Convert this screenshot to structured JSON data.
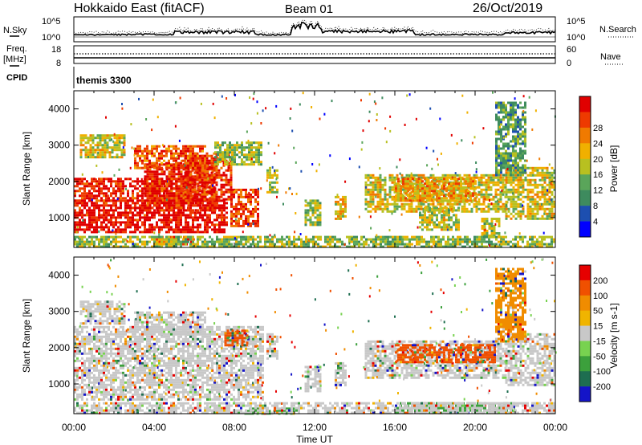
{
  "header": {
    "station": "Hokkaido East (fitACF)",
    "beam": "Beam 01",
    "date": "26/Oct/2019"
  },
  "sky_panel": {
    "left_label": "N.Sky",
    "right_label": "N.Search",
    "left_ticks": [
      "10^5",
      "10^0"
    ],
    "right_ticks": [
      "10^5",
      "10^0"
    ]
  },
  "freq_panel": {
    "left_label_1": "Freq.",
    "left_label_2": "[MHz]",
    "right_label": "Nave",
    "left_ticks": [
      "18",
      "8"
    ],
    "right_ticks": [
      "60",
      "0"
    ]
  },
  "cpid_panel": {
    "label": "CPID",
    "mode": "themis 3300"
  },
  "chart_data": [
    {
      "type": "heatmap",
      "title": "",
      "quantity": "Power",
      "unit": "dB",
      "ylabel": "Slant Range [km]",
      "xlabel": "",
      "x_ticks": [
        "00:00",
        "04:00",
        "08:00",
        "12:00",
        "16:00",
        "20:00",
        "00:00"
      ],
      "x_range_hours": [
        0,
        24
      ],
      "y_ticks": [
        1000,
        2000,
        3000,
        4000
      ],
      "ylim": [
        180,
        4500
      ],
      "colorbar": {
        "label": "Power [dB]",
        "ticks": [
          "4",
          "8",
          "12",
          "16",
          "20",
          "24",
          "28"
        ],
        "colors": [
          "#0000ff",
          "#1d4fb0",
          "#3e8b5e",
          "#5aa55a",
          "#b8c020",
          "#f0b000",
          "#f07a00",
          "#ee3a00",
          "#e00000"
        ]
      },
      "regions": [
        {
          "h0": 0.0,
          "h1": 7.6,
          "r0": 600,
          "r1": 1500,
          "level": 0.95
        },
        {
          "h0": 0.0,
          "h1": 6.0,
          "r0": 1500,
          "r1": 2100,
          "level": 0.92
        },
        {
          "h0": 3.5,
          "h1": 7.0,
          "r0": 1200,
          "r1": 2500,
          "level": 0.9
        },
        {
          "h0": 5.5,
          "h1": 7.8,
          "r0": 1500,
          "r1": 2800,
          "level": 0.88
        },
        {
          "h0": 3.0,
          "h1": 6.5,
          "r0": 2400,
          "r1": 3000,
          "level": 0.8
        },
        {
          "h0": 0.3,
          "h1": 2.5,
          "r0": 2700,
          "r1": 3300,
          "level": 0.55
        },
        {
          "h0": 7.8,
          "h1": 9.2,
          "r0": 800,
          "r1": 1800,
          "level": 0.85
        },
        {
          "h0": 7.0,
          "h1": 9.3,
          "r0": 2500,
          "r1": 3100,
          "level": 0.45
        },
        {
          "h0": 4.0,
          "h1": 6.0,
          "r0": 300,
          "r1": 500,
          "level": 0.8
        },
        {
          "h0": 9.6,
          "h1": 10.2,
          "r0": 1700,
          "r1": 2400,
          "level": 0.45
        },
        {
          "h0": 11.5,
          "h1": 12.3,
          "r0": 800,
          "r1": 1500,
          "level": 0.45
        },
        {
          "h0": 13.0,
          "h1": 13.6,
          "r0": 1000,
          "r1": 1600,
          "level": 0.6
        },
        {
          "h0": 14.5,
          "h1": 21.5,
          "r0": 1200,
          "r1": 2200,
          "level": 0.55
        },
        {
          "h0": 16.0,
          "h1": 20.0,
          "r0": 1500,
          "r1": 2100,
          "level": 0.65
        },
        {
          "h0": 17.2,
          "h1": 19.2,
          "r0": 700,
          "r1": 1300,
          "level": 0.5
        },
        {
          "h0": 20.3,
          "h1": 21.2,
          "r0": 500,
          "r1": 1000,
          "level": 0.5
        },
        {
          "h0": 21.5,
          "h1": 24.0,
          "r0": 1000,
          "r1": 2400,
          "level": 0.55
        },
        {
          "h0": 21.0,
          "h1": 22.5,
          "r0": 2200,
          "r1": 4200,
          "level": 0.35
        },
        {
          "h0": 0.0,
          "h1": 24.0,
          "r0": 180,
          "r1": 500,
          "level": 0.45
        }
      ]
    },
    {
      "type": "heatmap",
      "title": "",
      "quantity": "Velocity",
      "unit": "m s^-1",
      "ylabel": "Slant Range [km]",
      "xlabel": "Time UT",
      "x_ticks": [
        "00:00",
        "04:00",
        "08:00",
        "12:00",
        "16:00",
        "20:00",
        "00:00"
      ],
      "x_range_hours": [
        0,
        24
      ],
      "y_ticks": [
        1000,
        2000,
        3000,
        4000
      ],
      "ylim": [
        180,
        4500
      ],
      "colorbar": {
        "label": "Velocity [m s-1]",
        "ticks": [
          "200",
          "100",
          "50",
          "15",
          "-15",
          "-50",
          "-100",
          "-200"
        ],
        "colors": [
          "#1414c8",
          "#1e6e50",
          "#3ca03c",
          "#78d250",
          "#c8c8c8",
          "#f0b400",
          "#f08c00",
          "#f05000",
          "#e60000"
        ]
      },
      "regions": [
        {
          "h0": 0.0,
          "h1": 9.4,
          "r0": 600,
          "r1": 2600,
          "level": 0.5
        },
        {
          "h0": 0.3,
          "h1": 2.5,
          "r0": 2700,
          "r1": 3300,
          "level": 0.5
        },
        {
          "h0": 3.0,
          "h1": 6.5,
          "r0": 2400,
          "r1": 3000,
          "level": 0.5
        },
        {
          "h0": 7.5,
          "h1": 8.6,
          "r0": 2100,
          "r1": 2500,
          "level": 0.85
        },
        {
          "h0": 9.6,
          "h1": 10.2,
          "r0": 1700,
          "r1": 2400,
          "level": 0.5
        },
        {
          "h0": 11.5,
          "h1": 12.3,
          "r0": 800,
          "r1": 1500,
          "level": 0.5
        },
        {
          "h0": 13.0,
          "h1": 13.6,
          "r0": 1000,
          "r1": 1600,
          "level": 0.5
        },
        {
          "h0": 14.5,
          "h1": 21.5,
          "r0": 1200,
          "r1": 2200,
          "level": 0.5
        },
        {
          "h0": 16.0,
          "h1": 21.0,
          "r0": 1600,
          "r1": 2100,
          "level": 0.8
        },
        {
          "h0": 21.5,
          "h1": 24.0,
          "r0": 1000,
          "r1": 2400,
          "level": 0.5
        },
        {
          "h0": 21.0,
          "h1": 22.5,
          "r0": 2200,
          "r1": 4200,
          "level": 0.75
        },
        {
          "h0": 16.0,
          "h1": 22.0,
          "r0": 180,
          "r1": 500,
          "level": 0.3
        },
        {
          "h0": 8.5,
          "h1": 11.0,
          "r0": 180,
          "r1": 350,
          "level": 0.3
        },
        {
          "h0": 0.0,
          "h1": 24.0,
          "r0": 180,
          "r1": 500,
          "level": 0.55
        }
      ]
    }
  ]
}
